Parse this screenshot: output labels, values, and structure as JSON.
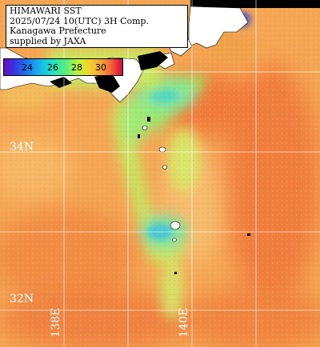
{
  "map": {
    "info_lines": [
      "HIMAWARI SST",
      "2025/07/24 10(UTC) 3H Comp.",
      "Kanagawa Prefecture",
      "supplied by JAXA"
    ],
    "legend": {
      "ticks": [
        "24",
        "26",
        "28",
        "30"
      ],
      "colors": {
        "cold": "#6a0fc4",
        "cool": "#15b5ee",
        "mid": "#55ef7c",
        "warm": "#f5a13a",
        "hot": "#e6213a"
      }
    },
    "latitude_labels": [
      "34N",
      "32N"
    ],
    "longitude_labels": [
      "138E",
      "140E"
    ],
    "colors": {
      "land": "#ffffff",
      "nodata": "#000000",
      "grid": "#ffffff",
      "warm_sea": "#f4a24e",
      "cool_sea": "#8ff08a"
    }
  }
}
